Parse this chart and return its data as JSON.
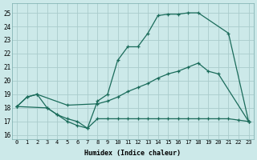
{
  "xlabel": "Humidex (Indice chaleur)",
  "bg_color": "#cce9e9",
  "line_color": "#1a6b5a",
  "grid_color": "#aacccc",
  "xlim": [
    -0.5,
    23.5
  ],
  "ylim": [
    15.7,
    25.7
  ],
  "xticks": [
    0,
    1,
    2,
    3,
    4,
    5,
    6,
    7,
    8,
    9,
    10,
    11,
    12,
    13,
    14,
    15,
    16,
    17,
    18,
    19,
    20,
    21,
    22,
    23
  ],
  "yticks": [
    16,
    17,
    18,
    19,
    20,
    21,
    22,
    23,
    24,
    25
  ],
  "curve_top": {
    "x": [
      0,
      1,
      2,
      3,
      4,
      5,
      6,
      7,
      8,
      9,
      10,
      11,
      12,
      13,
      14,
      15,
      16,
      17,
      18,
      21,
      23
    ],
    "y": [
      18.1,
      18.8,
      19.0,
      18.0,
      17.5,
      17.0,
      16.7,
      16.5,
      18.5,
      19.0,
      21.5,
      22.5,
      22.5,
      23.5,
      24.8,
      24.9,
      24.9,
      25.0,
      25.0,
      23.5,
      17.0
    ]
  },
  "curve_diag": {
    "x": [
      0,
      1,
      2,
      5,
      8,
      9,
      10,
      11,
      12,
      13,
      14,
      15,
      16,
      17,
      18,
      19,
      20,
      23
    ],
    "y": [
      18.1,
      18.8,
      19.0,
      18.2,
      18.3,
      18.5,
      18.8,
      19.2,
      19.5,
      19.8,
      20.2,
      20.5,
      20.7,
      21.0,
      21.3,
      20.7,
      20.5,
      17.0
    ]
  },
  "curve_bot": {
    "x": [
      0,
      3,
      4,
      5,
      6,
      7,
      8,
      9,
      10,
      11,
      12,
      13,
      14,
      15,
      16,
      17,
      18,
      19,
      20,
      21,
      22,
      23
    ],
    "y": [
      18.1,
      18.0,
      17.5,
      17.2,
      17.0,
      16.5,
      17.2,
      17.2,
      17.2,
      17.2,
      17.2,
      17.2,
      17.2,
      17.2,
      17.2,
      17.2,
      17.2,
      17.2,
      17.2,
      17.2,
      17.1,
      17.0
    ]
  }
}
